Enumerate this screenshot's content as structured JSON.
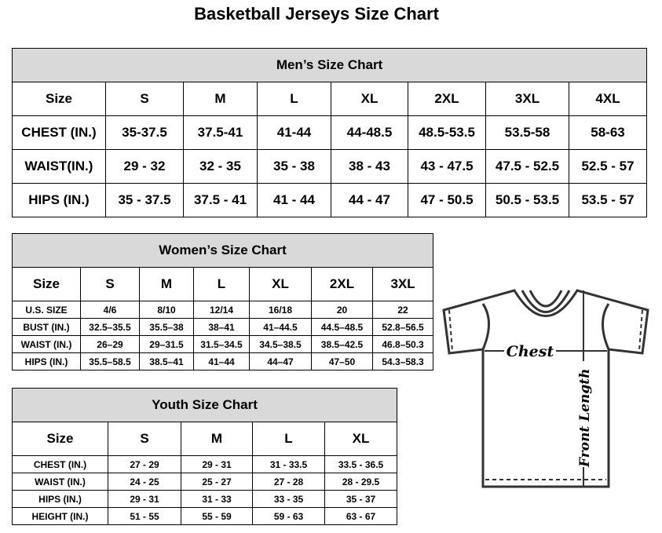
{
  "title": "Basketball Jerseys Size Chart",
  "men": {
    "caption": "Men’s Size Chart",
    "header": [
      "Size",
      "S",
      "M",
      "L",
      "XL",
      "2XL",
      "3XL",
      "4XL"
    ],
    "rows": [
      [
        "CHEST (IN.)",
        "35-37.5",
        "37.5-41",
        "41-44",
        "44-48.5",
        "48.5-53.5",
        "53.5-58",
        "58-63"
      ],
      [
        "WAIST(IN.)",
        "29 - 32",
        "32 - 35",
        "35 - 38",
        "38 - 43",
        "43 - 47.5",
        "47.5 - 52.5",
        "52.5 - 57"
      ],
      [
        "HIPS (IN.)",
        "35 - 37.5",
        "37.5 - 41",
        "41 - 44",
        "44 - 47",
        "47 - 50.5",
        "50.5 - 53.5",
        "53.5 - 57"
      ]
    ]
  },
  "women": {
    "caption": "Women’s Size Chart",
    "header": [
      "Size",
      "S",
      "M",
      "L",
      "XL",
      "2XL",
      "3XL"
    ],
    "rows": [
      [
        "U.S. SIZE",
        "4/6",
        "8/10",
        "12/14",
        "16/18",
        "20",
        "22"
      ],
      [
        "BUST (IN.)",
        "32.5–35.5",
        "35.5–38",
        "38–41",
        "41–44.5",
        "44.5–48.5",
        "52.8–56.5"
      ],
      [
        "WAIST (IN.)",
        "26–29",
        "29–31.5",
        "31.5–34.5",
        "34.5–38.5",
        "38.5–42.5",
        "46.8–50.3"
      ],
      [
        "HIPS (IN.)",
        "35.5–58.5",
        "38.5–41",
        "41–44",
        "44–47",
        "47–50",
        "54.3–58.3"
      ]
    ]
  },
  "youth": {
    "caption": "Youth Size Chart",
    "header": [
      "Size",
      "S",
      "M",
      "L",
      "XL"
    ],
    "rows": [
      [
        "CHEST (IN.)",
        "27 - 29",
        "29 - 31",
        "31 - 33.5",
        "33.5 - 36.5"
      ],
      [
        "WAIST (IN.)",
        "24 - 25",
        "25 - 27",
        "27 - 28",
        "28 - 29.5"
      ],
      [
        "HIPS (IN.)",
        "29 - 31",
        "31 - 33",
        "33 - 35",
        "35 - 37"
      ],
      [
        "HEIGHT (IN.)",
        "51 - 55",
        "55 - 59",
        "59 - 63",
        "63 - 67"
      ]
    ]
  },
  "diagram": {
    "chest_label": "Chest",
    "length_label": "Front Length"
  }
}
